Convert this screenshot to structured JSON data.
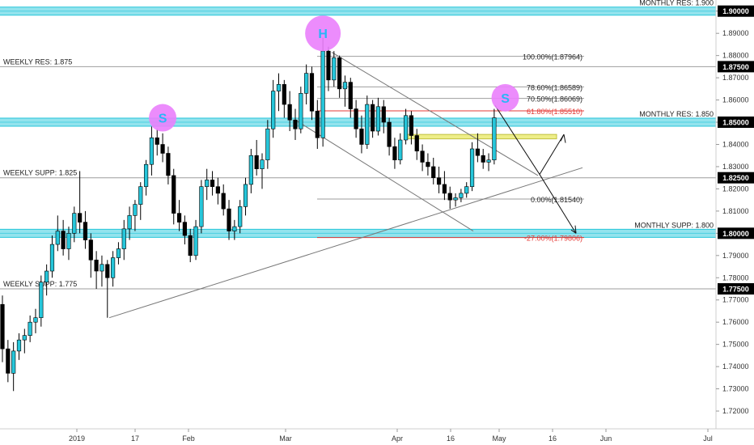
{
  "chart_data": {
    "type": "candlestick",
    "y_axis": {
      "ylim": [
        1.712,
        1.905
      ],
      "ticks": [
        "1.72000",
        "1.73000",
        "1.74000",
        "1.75000",
        "1.76000",
        "1.77000",
        "1.78000",
        "1.79000",
        "1.80000",
        "1.81000",
        "1.82000",
        "1.83000",
        "1.84000",
        "1.85000",
        "1.86000",
        "1.87000",
        "1.88000",
        "1.89000",
        "1.90000"
      ],
      "highlighted_ticks": [
        {
          "label": "1.90000",
          "value": 1.9
        },
        {
          "label": "1.87500",
          "value": 1.875
        },
        {
          "label": "1.85000",
          "value": 1.85
        },
        {
          "label": "1.82500",
          "value": 1.825
        },
        {
          "label": "1.80000",
          "value": 1.8
        },
        {
          "label": "1.77500",
          "value": 1.775
        }
      ]
    },
    "x_axis": {
      "n_slots": 170,
      "ticks": [
        {
          "label": "2019",
          "slot": 0
        },
        {
          "label": "17",
          "slot": 12
        },
        {
          "label": "Feb",
          "slot": 23
        },
        {
          "label": "Mar",
          "slot": 43
        },
        {
          "label": "Apr",
          "slot": 66
        },
        {
          "label": "16",
          "slot": 77
        },
        {
          "label": "May",
          "slot": 87
        },
        {
          "label": "16",
          "slot": 98
        },
        {
          "label": "Jun",
          "slot": 109
        },
        {
          "label": "Jul",
          "slot": 130
        }
      ]
    },
    "levels": [
      {
        "label": "MONTHLY RES: 1.900",
        "value": 1.9,
        "style": "band",
        "label_side": "right"
      },
      {
        "label": "WEEKLY RES: 1.875",
        "value": 1.875,
        "style": "line",
        "label_side": "left"
      },
      {
        "label": "MONTHLY RES: 1.850",
        "value": 1.85,
        "style": "band",
        "label_side": "right"
      },
      {
        "label": "WEEKLY SUPP: 1.825",
        "value": 1.825,
        "style": "line",
        "label_side": "left"
      },
      {
        "label": "MONTHLY SUPP: 1.800",
        "value": 1.8,
        "style": "band",
        "label_side": "right"
      },
      {
        "label": "WEEKLY SUPP: 1.775",
        "value": 1.775,
        "style": "line",
        "label_side": "left"
      }
    ],
    "fib_levels": [
      {
        "label": "100.00%(1.87964)",
        "value": 1.87964,
        "color": "#222222"
      },
      {
        "label": "78.60%(1.86589)",
        "value": 1.86589,
        "color": "#222222"
      },
      {
        "label": "70.50%(1.86069)",
        "value": 1.86069,
        "color": "#222222"
      },
      {
        "label": "61.80%(1.85510)",
        "value": 1.8551,
        "color": "#e53935"
      },
      {
        "label": "0.00%(1.81540)",
        "value": 1.8154,
        "color": "#222222"
      },
      {
        "label": "-27.00%(1.79806)",
        "value": 1.79806,
        "color": "#e53935"
      }
    ],
    "pattern_marks": [
      {
        "label": "S",
        "slot": 29,
        "value": 1.852
      },
      {
        "label": "H",
        "slot": 58,
        "value": 1.89
      },
      {
        "label": "S",
        "slot": 91,
        "value": 1.861
      }
    ],
    "candles": [
      [
        1.768,
        1.772,
        1.742,
        1.748
      ],
      [
        1.748,
        1.752,
        1.733,
        1.737
      ],
      [
        1.737,
        1.751,
        1.729,
        1.747
      ],
      [
        1.747,
        1.755,
        1.743,
        1.752
      ],
      [
        1.752,
        1.757,
        1.746,
        1.754
      ],
      [
        1.754,
        1.763,
        1.751,
        1.76
      ],
      [
        1.76,
        1.766,
        1.755,
        1.762
      ],
      [
        1.762,
        1.781,
        1.758,
        1.778
      ],
      [
        1.778,
        1.786,
        1.772,
        1.783
      ],
      [
        1.783,
        1.799,
        1.78,
        1.795
      ],
      [
        1.795,
        1.808,
        1.792,
        1.801
      ],
      [
        1.801,
        1.806,
        1.79,
        1.793
      ],
      [
        1.793,
        1.803,
        1.788,
        1.8
      ],
      [
        1.8,
        1.812,
        1.796,
        1.809
      ],
      [
        1.809,
        1.828,
        1.8,
        1.805
      ],
      [
        1.805,
        1.81,
        1.793,
        1.797
      ],
      [
        1.797,
        1.8,
        1.78,
        1.788
      ],
      [
        1.788,
        1.792,
        1.775,
        1.783
      ],
      [
        1.783,
        1.79,
        1.776,
        1.786
      ],
      [
        1.786,
        1.788,
        1.762,
        1.78
      ],
      [
        1.78,
        1.792,
        1.776,
        1.789
      ],
      [
        1.789,
        1.796,
        1.786,
        1.793
      ],
      [
        1.793,
        1.806,
        1.788,
        1.802
      ],
      [
        1.802,
        1.812,
        1.797,
        1.808
      ],
      [
        1.808,
        1.815,
        1.801,
        1.813
      ],
      [
        1.813,
        1.823,
        1.806,
        1.821
      ],
      [
        1.821,
        1.833,
        1.817,
        1.831
      ],
      [
        1.831,
        1.848,
        1.826,
        1.843
      ],
      [
        1.843,
        1.847,
        1.835,
        1.84
      ],
      [
        1.84,
        1.845,
        1.832,
        1.836
      ],
      [
        1.836,
        1.839,
        1.822,
        1.826
      ],
      [
        1.826,
        1.829,
        1.804,
        1.809
      ],
      [
        1.809,
        1.815,
        1.801,
        1.805
      ],
      [
        1.805,
        1.808,
        1.795,
        1.799
      ],
      [
        1.799,
        1.802,
        1.787,
        1.79
      ],
      [
        1.79,
        1.806,
        1.788,
        1.803
      ],
      [
        1.803,
        1.824,
        1.8,
        1.821
      ],
      [
        1.821,
        1.829,
        1.815,
        1.824
      ],
      [
        1.824,
        1.828,
        1.817,
        1.821
      ],
      [
        1.821,
        1.825,
        1.813,
        1.818
      ],
      [
        1.818,
        1.822,
        1.808,
        1.811
      ],
      [
        1.811,
        1.815,
        1.797,
        1.801
      ],
      [
        1.801,
        1.806,
        1.797,
        1.803
      ],
      [
        1.803,
        1.815,
        1.8,
        1.812
      ],
      [
        1.812,
        1.825,
        1.808,
        1.822
      ],
      [
        1.822,
        1.838,
        1.818,
        1.835
      ],
      [
        1.835,
        1.842,
        1.826,
        1.829
      ],
      [
        1.829,
        1.836,
        1.82,
        1.833
      ],
      [
        1.833,
        1.851,
        1.829,
        1.847
      ],
      [
        1.847,
        1.869,
        1.843,
        1.864
      ],
      [
        1.864,
        1.872,
        1.855,
        1.867
      ],
      [
        1.867,
        1.869,
        1.852,
        1.858
      ],
      [
        1.858,
        1.864,
        1.846,
        1.851
      ],
      [
        1.851,
        1.856,
        1.842,
        1.847
      ],
      [
        1.847,
        1.866,
        1.845,
        1.863
      ],
      [
        1.863,
        1.876,
        1.858,
        1.872
      ],
      [
        1.872,
        1.875,
        1.851,
        1.855
      ],
      [
        1.855,
        1.86,
        1.838,
        1.843
      ],
      [
        1.843,
        1.888,
        1.839,
        1.882
      ],
      [
        1.882,
        1.884,
        1.864,
        1.869
      ],
      [
        1.869,
        1.882,
        1.866,
        1.879
      ],
      [
        1.879,
        1.88,
        1.861,
        1.865
      ],
      [
        1.865,
        1.871,
        1.857,
        1.868
      ],
      [
        1.868,
        1.87,
        1.852,
        1.856
      ],
      [
        1.856,
        1.86,
        1.843,
        1.847
      ],
      [
        1.847,
        1.853,
        1.836,
        1.84
      ],
      [
        1.84,
        1.862,
        1.838,
        1.858
      ],
      [
        1.858,
        1.86,
        1.843,
        1.846
      ],
      [
        1.846,
        1.861,
        1.844,
        1.857
      ],
      [
        1.857,
        1.86,
        1.845,
        1.85
      ],
      [
        1.85,
        1.852,
        1.835,
        1.839
      ],
      [
        1.839,
        1.843,
        1.829,
        1.833
      ],
      [
        1.833,
        1.845,
        1.831,
        1.842
      ],
      [
        1.842,
        1.856,
        1.84,
        1.853
      ],
      [
        1.853,
        1.855,
        1.84,
        1.844
      ],
      [
        1.844,
        1.847,
        1.833,
        1.837
      ],
      [
        1.837,
        1.84,
        1.828,
        1.832
      ],
      [
        1.832,
        1.836,
        1.826,
        1.83
      ],
      [
        1.83,
        1.834,
        1.822,
        1.825
      ],
      [
        1.825,
        1.83,
        1.818,
        1.822
      ],
      [
        1.822,
        1.828,
        1.815,
        1.818
      ],
      [
        1.818,
        1.821,
        1.811,
        1.815
      ],
      [
        1.815,
        1.818,
        1.812,
        1.816
      ],
      [
        1.816,
        1.82,
        1.814,
        1.818
      ],
      [
        1.818,
        1.823,
        1.816,
        1.821
      ],
      [
        1.821,
        1.841,
        1.819,
        1.838
      ],
      [
        1.838,
        1.845,
        1.832,
        1.835
      ],
      [
        1.835,
        1.838,
        1.829,
        1.832
      ],
      [
        1.832,
        1.836,
        1.828,
        1.833
      ],
      [
        1.833,
        1.856,
        1.831,
        1.852
      ]
    ],
    "colors": {
      "up": "#26c6da",
      "down": "#000000",
      "band": "#80deea",
      "band_edge": "#26c6da",
      "mark_circle": "#ea80fc",
      "mark_text": "#29b6f6",
      "level_line": "#9e9e9e",
      "axis_tag_bg": "#000000",
      "rect_zone": "#eeee88"
    }
  }
}
